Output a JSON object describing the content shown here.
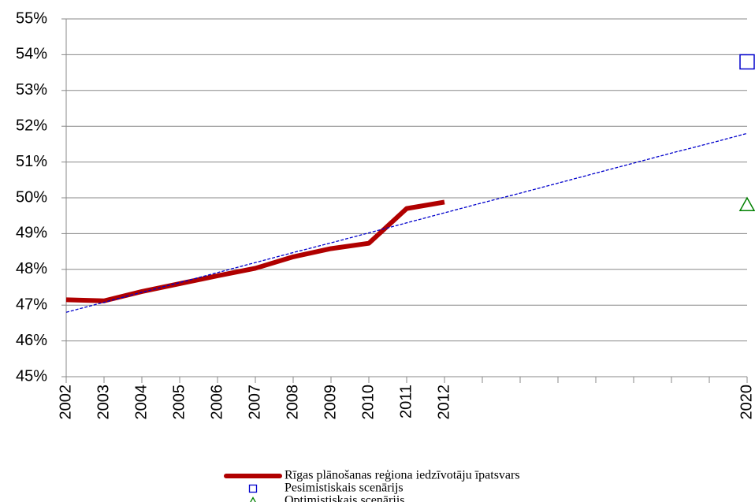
{
  "chart_data": {
    "type": "line",
    "categories": [
      "2002",
      "2003",
      "2004",
      "2005",
      "2006",
      "2007",
      "2008",
      "2009",
      "2010",
      "2011",
      "2012",
      null,
      null,
      null,
      null,
      null,
      null,
      null,
      "2020"
    ],
    "series": [
      {
        "name": "Rīgas plānošanas reģiona iedzīvotāju īpatsvars",
        "color": "#b00000",
        "style": "line",
        "values": [
          47.15,
          47.12,
          47.38,
          47.6,
          47.82,
          48.03,
          48.35,
          48.58,
          48.73,
          49.7,
          49.88,
          null,
          null,
          null,
          null,
          null,
          null,
          null,
          null
        ]
      },
      {
        "name": "Pesimistiskais scenārijs",
        "color": "#0000cc",
        "style": "square",
        "values": [
          null,
          null,
          null,
          null,
          null,
          null,
          null,
          null,
          null,
          null,
          null,
          null,
          null,
          null,
          null,
          null,
          null,
          null,
          53.8
        ]
      },
      {
        "name": "Optimistiskais scenārijs",
        "color": "#008000",
        "style": "triangle",
        "values": [
          null,
          null,
          null,
          null,
          null,
          null,
          null,
          null,
          null,
          null,
          null,
          null,
          null,
          null,
          null,
          null,
          null,
          null,
          49.8
        ]
      },
      {
        "color": "#0000cc",
        "style": "dashed",
        "values": [
          46.8,
          47.08,
          47.36,
          47.63,
          47.91,
          48.19,
          48.47,
          48.74,
          49.02,
          49.3,
          49.58,
          49.86,
          50.13,
          50.41,
          50.69,
          50.97,
          51.25,
          51.52,
          51.8
        ]
      }
    ],
    "ylim": [
      45,
      55
    ],
    "yticks": [
      {
        "value": 45,
        "label": "45%"
      },
      {
        "value": 46,
        "label": "46%"
      },
      {
        "value": 47,
        "label": "47%"
      },
      {
        "value": 48,
        "label": "48%"
      },
      {
        "value": 49,
        "label": "49%"
      },
      {
        "value": 50,
        "label": "50%"
      },
      {
        "value": 51,
        "label": "51%"
      },
      {
        "value": 52,
        "label": "52%"
      },
      {
        "value": 53,
        "label": "53%"
      },
      {
        "value": 54,
        "label": "54%"
      },
      {
        "value": 55,
        "label": "55%"
      }
    ],
    "grid": true,
    "legend": "bottom"
  }
}
